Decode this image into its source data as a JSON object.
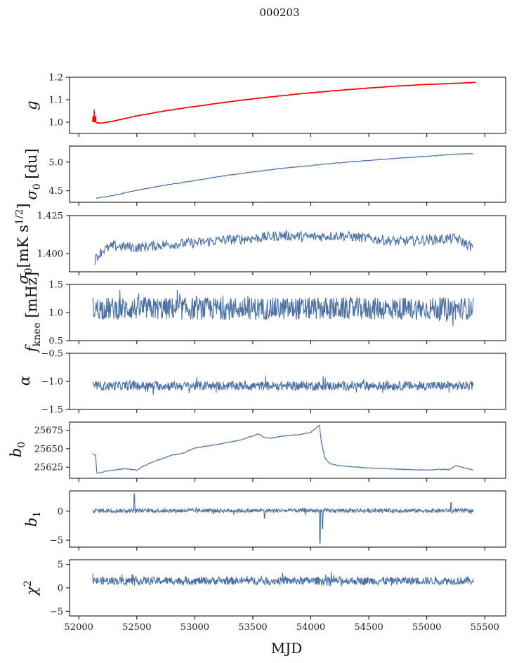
{
  "figure": {
    "suptitle": "000203",
    "xlabel": "MJD",
    "x_ticks": [
      52000,
      52500,
      53000,
      53500,
      54000,
      54500,
      55000,
      55500
    ],
    "xlim": [
      51920,
      55680
    ]
  },
  "colors": {
    "series": "#4c72a4",
    "fit": "#ff0000",
    "axes": "#000000"
  },
  "chart_data": [
    {
      "type": "line",
      "ylabel": "g",
      "ylim": [
        0.95,
        1.2
      ],
      "y_ticks": [
        1.0,
        1.1,
        1.2
      ],
      "y_tick_labels": [
        "1.0",
        "1.1",
        "1.2"
      ],
      "series": [
        {
          "style": "blue",
          "x": [
            52120,
            52160,
            52200,
            52300,
            52500,
            52750,
            53000,
            53250,
            53500,
            53750,
            54000,
            54250,
            54500,
            54750,
            55000,
            55250,
            55420
          ],
          "values": [
            1.01,
            0.997,
            0.996,
            1.005,
            1.028,
            1.051,
            1.07,
            1.088,
            1.104,
            1.118,
            1.131,
            1.142,
            1.152,
            1.161,
            1.168,
            1.173,
            1.177
          ]
        },
        {
          "style": "red",
          "x": [
            52120,
            52160,
            52200,
            52300,
            52500,
            52750,
            53000,
            53250,
            53500,
            53750,
            54000,
            54250,
            54500,
            54750,
            55000,
            55250,
            55420
          ],
          "values": [
            1.01,
            0.997,
            0.996,
            1.005,
            1.028,
            1.051,
            1.07,
            1.088,
            1.104,
            1.118,
            1.131,
            1.142,
            1.152,
            1.161,
            1.168,
            1.173,
            1.177
          ]
        }
      ]
    },
    {
      "type": "line",
      "ylabel": "σ0 [du]",
      "ylim": [
        4.3,
        5.28
      ],
      "y_ticks": [
        4.5,
        5.0
      ],
      "y_tick_labels": [
        "4.5",
        "5.0"
      ],
      "series": [
        {
          "style": "blue",
          "x": [
            52150,
            52300,
            52500,
            52750,
            53000,
            53250,
            53500,
            53750,
            54000,
            54250,
            54500,
            54750,
            55000,
            55250,
            55400
          ],
          "values": [
            4.37,
            4.42,
            4.51,
            4.6,
            4.68,
            4.76,
            4.83,
            4.89,
            4.94,
            4.99,
            5.03,
            5.07,
            5.1,
            5.14,
            5.15
          ]
        }
      ]
    },
    {
      "type": "line",
      "ylabel": "σ0[mK s1/2]",
      "ylim": [
        1.388,
        1.425
      ],
      "y_ticks": [
        1.4,
        1.425
      ],
      "y_tick_labels": [
        "1.400",
        "1.425"
      ],
      "series": [
        {
          "style": "blue",
          "x": [
            52140,
            52200,
            52300,
            52500,
            52750,
            53000,
            53250,
            53500,
            53750,
            54000,
            54250,
            54500,
            54750,
            55000,
            55250,
            55400
          ],
          "values": [
            1.396,
            1.402,
            1.405,
            1.404,
            1.406,
            1.407,
            1.409,
            1.41,
            1.412,
            1.411,
            1.412,
            1.41,
            1.408,
            1.409,
            1.41,
            1.404
          ]
        }
      ]
    },
    {
      "type": "line",
      "ylabel": "fknee [mHz]",
      "ylim": [
        0.5,
        1.5
      ],
      "y_ticks": [
        0.5,
        1.0,
        1.5
      ],
      "y_tick_labels": [
        "0.5",
        "1.0",
        "1.5"
      ],
      "noise": {
        "style": "blue",
        "x_start": 52120,
        "x_end": 55400,
        "center": 1.07,
        "amplitude": 0.2,
        "clip": [
          0.52,
          1.5
        ]
      }
    },
    {
      "type": "line",
      "ylabel": "α",
      "ylim": [
        -1.5,
        -0.5
      ],
      "y_ticks": [
        -1.5,
        -1.0,
        -0.5
      ],
      "y_tick_labels": [
        "−1.5",
        "−1.0",
        "−0.5"
      ],
      "noise": {
        "style": "blue",
        "x_start": 52120,
        "x_end": 55400,
        "center": -1.08,
        "amplitude": 0.08,
        "clip": [
          -1.42,
          -0.72
        ]
      }
    },
    {
      "type": "line",
      "ylabel": "b0",
      "ylim": [
        25610,
        25686
      ],
      "y_ticks": [
        25625,
        25650,
        25675
      ],
      "y_tick_labels": [
        "25625",
        "25650",
        "25675"
      ],
      "series": [
        {
          "style": "blue",
          "x": [
            52120,
            52145,
            52155,
            52250,
            52400,
            52500,
            52550,
            52650,
            52800,
            52900,
            53000,
            53200,
            53400,
            53550,
            53600,
            53650,
            53750,
            53900,
            54000,
            54075,
            54090,
            54120,
            54160,
            54250,
            54500,
            54800,
            55000,
            55100,
            55200,
            55250,
            55300,
            55400
          ],
          "values": [
            25643,
            25641,
            25617,
            25620,
            25623,
            25621,
            25626,
            25633,
            25641,
            25644,
            25651,
            25656,
            25662,
            25670,
            25665,
            25664,
            25667,
            25669,
            25672,
            25682,
            25660,
            25638,
            25630,
            25627,
            25624,
            25622,
            25621,
            25622,
            25622,
            25627,
            25625,
            25621
          ]
        }
      ]
    },
    {
      "type": "line",
      "ylabel": "b1",
      "ylim": [
        -6.2,
        3.5
      ],
      "y_ticks": [
        -5,
        0
      ],
      "y_tick_labels": [
        "−5",
        "0"
      ],
      "noise": {
        "style": "blue",
        "x_start": 52120,
        "x_end": 55400,
        "center": 0.1,
        "amplitude": 0.35,
        "clip": [
          -6,
          3.2
        ]
      },
      "events": [
        {
          "x": 52480,
          "y": 3.0
        },
        {
          "x": 53600,
          "y": -1.2
        },
        {
          "x": 54080,
          "y": -5.5
        },
        {
          "x": 54100,
          "y": -3.0
        },
        {
          "x": 55210,
          "y": 1.5
        }
      ]
    },
    {
      "type": "line",
      "ylabel": "χ2",
      "ylim": [
        -6,
        6
      ],
      "y_ticks": [
        -5,
        0,
        5
      ],
      "y_tick_labels": [
        "−5",
        "0",
        "5"
      ],
      "noise": {
        "style": "blue",
        "x_start": 52120,
        "x_end": 55400,
        "center": 1.5,
        "amplitude": 0.85,
        "clip": [
          -1.5,
          4.5
        ]
      }
    }
  ]
}
